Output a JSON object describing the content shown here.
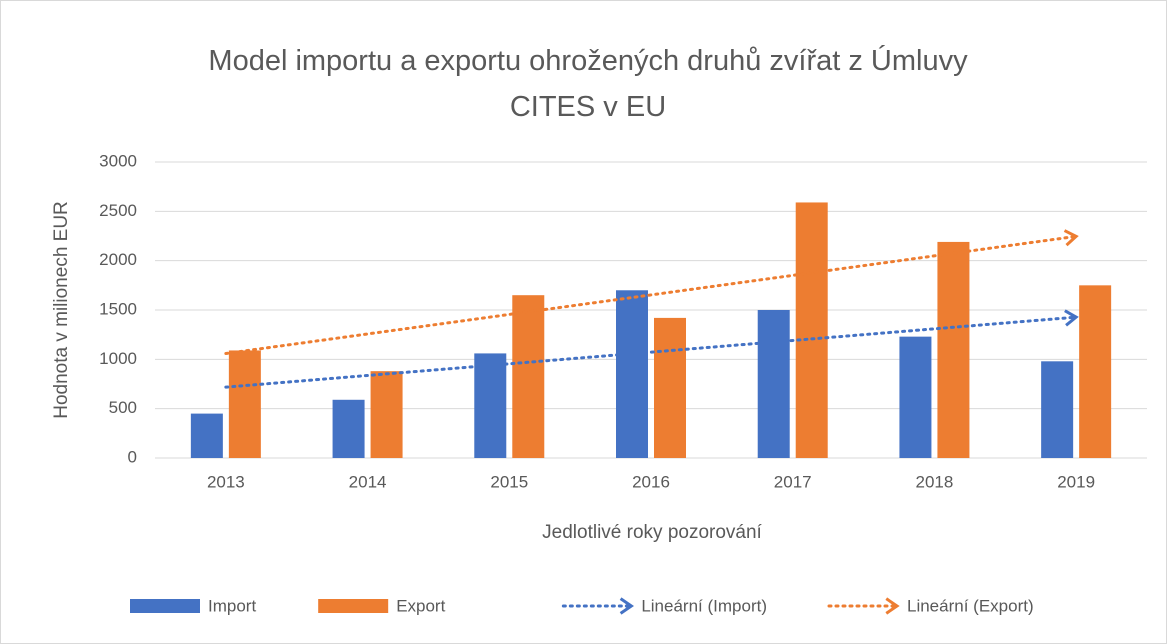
{
  "chart_data": {
    "type": "bar",
    "title": "Model importu a exportu ohrožených druhů zvířat z Úmluvy CITES v EU",
    "x_label": "Jedlotlivé roky pozorování",
    "y_label": "Hodnota v milionech EUR",
    "categories": [
      "2013",
      "2014",
      "2015",
      "2016",
      "2017",
      "2018",
      "2019"
    ],
    "series": [
      {
        "name": "Import",
        "color": "#4472c4",
        "values": [
          450,
          590,
          1060,
          1700,
          1500,
          1230,
          980
        ],
        "trendline": "linear",
        "trendline_name": "Lineární (Import)"
      },
      {
        "name": "Export",
        "color": "#ed7d31",
        "values": [
          1090,
          880,
          1650,
          1420,
          2590,
          2190,
          1750
        ],
        "trendline": "linear",
        "trendline_name": "Lineární (Export)"
      }
    ],
    "ylim": [
      0,
      3000
    ],
    "yticks": [
      0,
      500,
      1000,
      1500,
      2000,
      2500,
      3000
    ],
    "grid": true,
    "legend": "bottom"
  }
}
